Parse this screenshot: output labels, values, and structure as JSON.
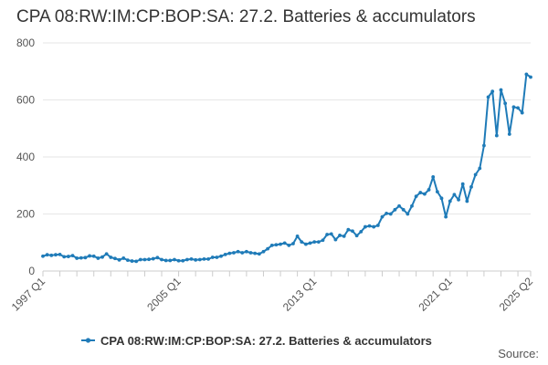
{
  "chart_data": {
    "type": "line",
    "title": "CPA 08:RW:IM:CP:BOP:SA: 27.2. Batteries & accumulators",
    "xlabel": "",
    "ylabel": "",
    "ylim": [
      0,
      800
    ],
    "y_ticks": [
      0,
      200,
      400,
      600,
      800
    ],
    "x_ticks": [
      "1997 Q1",
      "2005 Q1",
      "2013 Q1",
      "2021 Q1",
      "2025 Q2"
    ],
    "grid": true,
    "legend_position": "bottom",
    "series": [
      {
        "name": "CPA 08:RW:IM:CP:BOP:SA: 27.2. Batteries & accumulators",
        "color": "#1f7bb8",
        "start": "1997 Q1",
        "values": [
          52,
          57,
          55,
          57,
          58,
          50,
          51,
          54,
          45,
          46,
          47,
          53,
          52,
          45,
          49,
          60,
          48,
          44,
          39,
          45,
          38,
          35,
          34,
          40,
          40,
          41,
          43,
          47,
          40,
          37,
          37,
          40,
          36,
          36,
          40,
          42,
          39,
          40,
          42,
          42,
          48,
          48,
          52,
          58,
          62,
          64,
          68,
          64,
          68,
          64,
          62,
          60,
          68,
          78,
          90,
          92,
          94,
          98,
          90,
          96,
          122,
          102,
          94,
          98,
          102,
          102,
          108,
          128,
          130,
          110,
          125,
          122,
          145,
          140,
          124,
          138,
          155,
          158,
          155,
          160,
          190,
          202,
          200,
          215,
          228,
          215,
          200,
          228,
          262,
          275,
          270,
          285,
          330,
          278,
          255,
          190,
          245,
          268,
          250,
          305,
          245,
          295,
          338,
          360,
          440,
          610,
          630,
          475,
          635,
          588,
          480,
          575,
          572,
          555,
          690,
          680
        ]
      }
    ]
  },
  "legend": {
    "label": "CPA 08:RW:IM:CP:BOP:SA: 27.2. Batteries & accumulators"
  },
  "footer": {
    "source": "Source:"
  }
}
